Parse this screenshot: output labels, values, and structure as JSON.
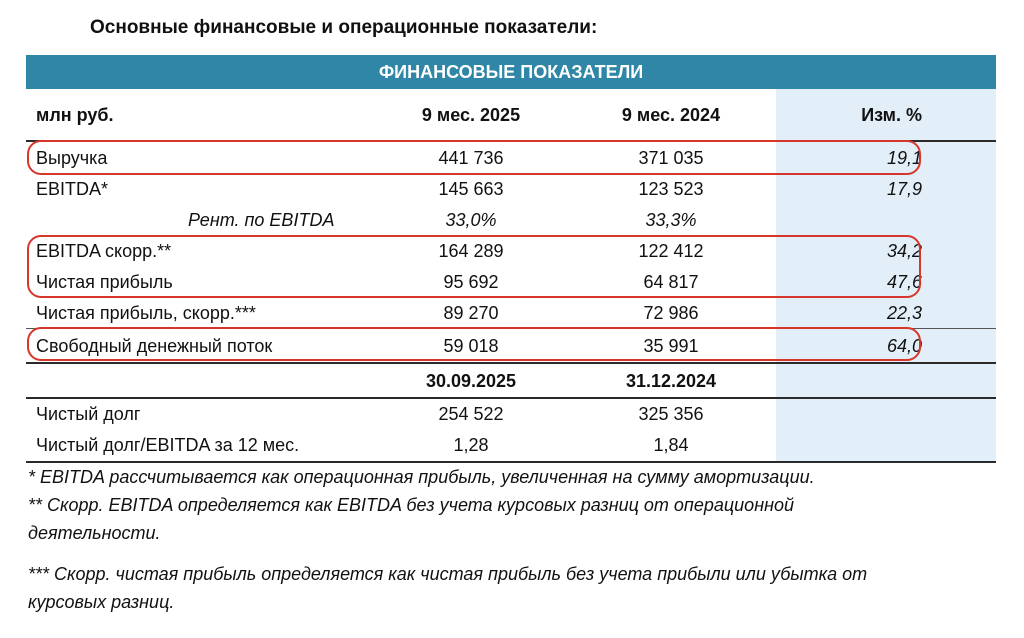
{
  "title": "Основные финансовые и операционные показатели:",
  "table": {
    "header": "ФИНАНСОВЫЕ ПОКАЗАТЕЛИ",
    "columns": {
      "label": "млн руб.",
      "period1": "9 мес. 2025",
      "period2": "9 мес. 2024",
      "change": "Изм. %"
    },
    "rows": [
      {
        "label": "Выручка",
        "v1": "441 736",
        "v2": "371 035",
        "chg": "19,1"
      },
      {
        "label": "EBITDA*",
        "v1": "145 663",
        "v2": "123 523",
        "chg": "17,9"
      },
      {
        "label": "Рент. по EBITDA",
        "v1": "33,0%",
        "v2": "33,3%",
        "chg": ""
      },
      {
        "label": "EBITDA скорр.**",
        "v1": "164 289",
        "v2": "122 412",
        "chg": "34,2"
      },
      {
        "label": "Чистая прибыль",
        "v1": "95 692",
        "v2": "64 817",
        "chg": "47,6"
      },
      {
        "label": "Чистая прибыль, скорр.***",
        "v1": "89 270",
        "v2": "72 986",
        "chg": "22,3"
      },
      {
        "label": "Свободный денежный поток",
        "v1": "59 018",
        "v2": "35 991",
        "chg": "64,0"
      }
    ],
    "balance_columns": {
      "date1": "30.09.2025",
      "date2": "31.12.2024"
    },
    "balance_rows": [
      {
        "label": "Чистый долг",
        "v1": "254 522",
        "v2": "325 356"
      },
      {
        "label": "Чистый долг/EBITDA за 12 мес.",
        "v1": "1,28",
        "v2": "1,84"
      }
    ]
  },
  "footnotes": [
    "* EBITDA рассчитывается как операционная прибыль, увеличенная на сумму амортизации.",
    "** Скорр. EBITDA определяется как EBITDA без учета курсовых разниц от операционной",
    "деятельности.",
    "*** Скорр. чистая прибыль определяется как чистая прибыль без учета прибыли или убытка от",
    "курсовых разниц."
  ],
  "colors": {
    "header_bg": "#2f86a6",
    "accent_column": "#e2eff8",
    "highlight": "#d7372b"
  }
}
